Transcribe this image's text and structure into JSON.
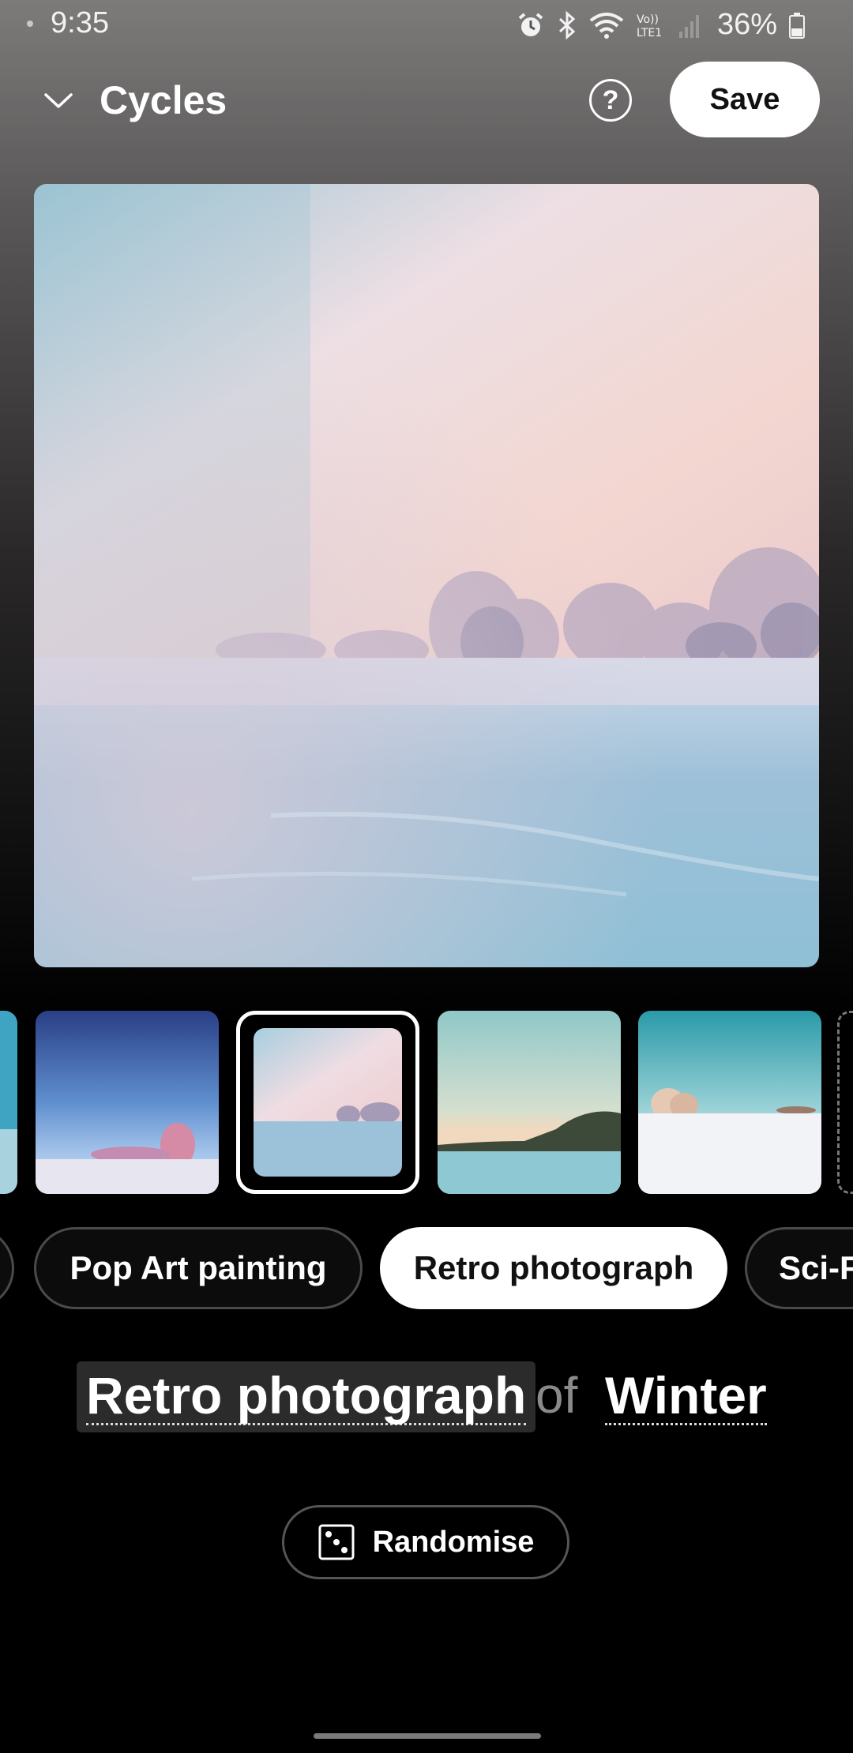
{
  "status_bar": {
    "time": "9:35",
    "battery": "36%",
    "icons": [
      "alarm-icon",
      "bluetooth-icon",
      "wifi-icon",
      "volte-lte-icon",
      "signal-icon",
      "battery-icon"
    ]
  },
  "header": {
    "title": "Cycles",
    "help_label": "?",
    "save_label": "Save"
  },
  "thumbnails": {
    "selected_index": 2,
    "items": [
      "winter-partial",
      "winter-pink-trees",
      "winter-retro-pastel",
      "winter-sunset-treeline",
      "winter-teal-trees"
    ]
  },
  "chips": {
    "items": [
      "Pop Art painting",
      "Retro photograph",
      "Sci-F"
    ],
    "active_index": 1
  },
  "prompt": {
    "style": "Retro photograph",
    "connector": "of",
    "subject": "Winter"
  },
  "randomise": {
    "label": "Randomise"
  },
  "colors": {
    "accent": "#ffffff",
    "chip_border": "#4a4a4a"
  }
}
